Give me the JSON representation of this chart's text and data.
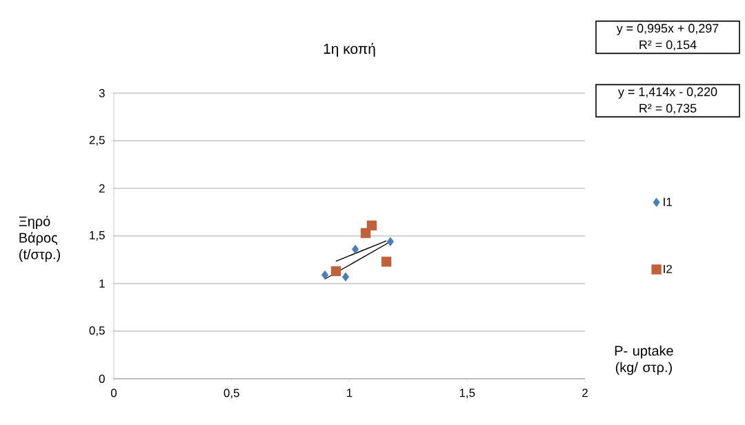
{
  "chart_data": {
    "type": "scatter",
    "title": "1η κοπή",
    "xlabel": "P- uptake (kg/ στρ.)",
    "ylabel": "Ξηρό Βάρος (t/στρ.)",
    "series": [
      {
        "name": "I1",
        "color": "#4a7ebb",
        "marker": "diamond",
        "x": [
          0.896,
          0.984,
          1.025,
          1.174
        ],
        "values": [
          1.09,
          1.07,
          1.36,
          1.44
        ]
      },
      {
        "name": "I2",
        "color": "#c0603c",
        "marker": "square",
        "x": [
          0.943,
          1.069,
          1.095,
          1.157
        ],
        "values": [
          1.13,
          1.53,
          1.61,
          1.23
        ]
      },
      {
        "type": "line",
        "color": "#000000",
        "marker": "none",
        "x": [
          0.896,
          1.174
        ],
        "values": [
          1.047,
          1.44
        ]
      },
      {
        "type": "line",
        "color": "#000000",
        "marker": "none",
        "x": [
          0.943,
          1.157
        ],
        "values": [
          1.235,
          1.448
        ]
      }
    ],
    "xlim": [
      0,
      2
    ],
    "ylim": [
      0,
      3
    ],
    "xticks": [
      0,
      {
        "value": 0.5,
        "label": "0,5"
      },
      1,
      {
        "value": 1.5,
        "label": "1,5"
      },
      2
    ],
    "yticks": [
      0,
      {
        "value": 0.5,
        "label": "0,5"
      },
      1,
      {
        "value": 1.5,
        "label": "1,5"
      },
      2,
      {
        "value": 2.5,
        "label": "2,5"
      },
      3
    ],
    "grid": "y",
    "legend": "right",
    "annotations": [
      "y = 0,995x + 0,297\nR² = 0,154",
      "y = 1,414x - 0,220\nR² = 0,735"
    ]
  }
}
